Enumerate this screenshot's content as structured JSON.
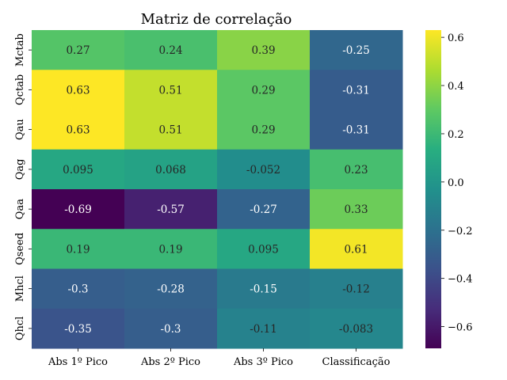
{
  "chart_data": {
    "type": "heatmap",
    "title": "Matriz de correlação",
    "x_categories": [
      "Abs 1º Pico",
      "Abs 2º Pico",
      "Abs 3º Pico",
      "Classificação"
    ],
    "y_categories": [
      "Mctab",
      "Qctab",
      "Qau",
      "Qag",
      "Qaa",
      "Qseed",
      "Mhcl",
      "Qhcl"
    ],
    "values": [
      [
        0.27,
        0.24,
        0.39,
        -0.25
      ],
      [
        0.63,
        0.51,
        0.29,
        -0.31
      ],
      [
        0.63,
        0.51,
        0.29,
        -0.31
      ],
      [
        0.095,
        0.068,
        -0.052,
        0.23
      ],
      [
        -0.69,
        -0.57,
        -0.27,
        0.33
      ],
      [
        0.19,
        0.19,
        0.095,
        0.61
      ],
      [
        -0.3,
        -0.28,
        -0.15,
        -0.12
      ],
      [
        -0.35,
        -0.3,
        -0.11,
        -0.083
      ]
    ],
    "labels": [
      [
        "0.27",
        "0.24",
        "0.39",
        "-0.25"
      ],
      [
        "0.63",
        "0.51",
        "0.29",
        "-0.31"
      ],
      [
        "0.63",
        "0.51",
        "0.29",
        "-0.31"
      ],
      [
        "0.095",
        "0.068",
        "-0.052",
        "0.23"
      ],
      [
        "-0.69",
        "-0.57",
        "-0.27",
        "0.33"
      ],
      [
        "0.19",
        "0.19",
        "0.095",
        "0.61"
      ],
      [
        "-0.3",
        "-0.28",
        "-0.15",
        "-0.12"
      ],
      [
        "-0.35",
        "-0.3",
        "-0.11",
        "-0.083"
      ]
    ],
    "colormap": "viridis",
    "vmin": -0.69,
    "vmax": 0.63,
    "colorbar_ticks": [
      0.6,
      0.4,
      0.2,
      0.0,
      -0.2,
      -0.4,
      -0.6
    ],
    "colorbar_tick_labels": [
      "0.6",
      "0.4",
      "0.2",
      "0.0",
      "−0.2",
      "−0.4",
      "−0.6"
    ],
    "colorbar_position": "right"
  }
}
